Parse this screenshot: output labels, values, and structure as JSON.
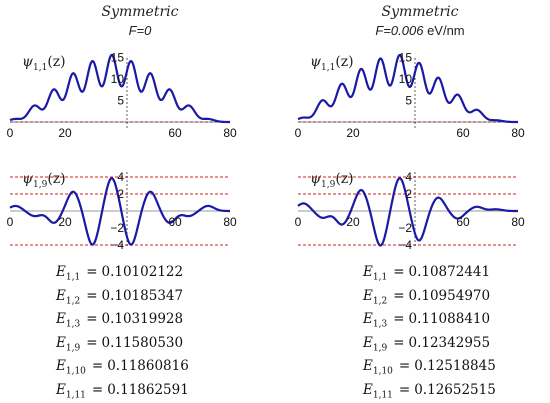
{
  "panels": [
    {
      "title": "Symmetric",
      "field_prefix": "F=",
      "field_value": "0",
      "field_unit": "",
      "psi11_label": "ψ",
      "psi11_sub": "1,1",
      "psi11_arg": "(z)",
      "psi19_label": "ψ",
      "psi19_sub": "1,9",
      "psi19_arg": "(z)",
      "energies": [
        {
          "sub": "1,1",
          "value": "0.10102122"
        },
        {
          "sub": "1,2",
          "value": "0.10185347"
        },
        {
          "sub": "1,3",
          "value": "0.10319928"
        },
        {
          "sub": "1,9",
          "value": "0.11580530"
        },
        {
          "sub": "1,10",
          "value": "0.11860816"
        },
        {
          "sub": "1,11",
          "value": "0.11862591"
        }
      ]
    },
    {
      "title": "Symmetric",
      "field_prefix": "F=",
      "field_value": "0.006",
      "field_unit": " eV/nm",
      "psi11_label": "ψ",
      "psi11_sub": "1,1",
      "psi11_arg": "(z)",
      "psi19_label": "ψ",
      "psi19_sub": "1,9",
      "psi19_arg": "(z)",
      "energies": [
        {
          "sub": "1,1",
          "value": "0.10872441"
        },
        {
          "sub": "1,2",
          "value": "0.10954970"
        },
        {
          "sub": "1,3",
          "value": "0.11088410"
        },
        {
          "sub": "1,9",
          "value": "0.12342955"
        },
        {
          "sub": "1,10",
          "value": "0.12518845"
        },
        {
          "sub": "1,11",
          "value": "0.12652515"
        }
      ]
    }
  ],
  "energy_symbol": "E",
  "energy_equals": "=",
  "colors": {
    "curve": "#1a1aa6",
    "reference": "#cc2222",
    "axis": "#333333"
  },
  "chart_data": [
    {
      "type": "line",
      "panel": "left",
      "title": "Symmetric F=0",
      "ylabel": "ψ1,1(z)",
      "xlim": [
        0,
        80
      ],
      "ylim": [
        0,
        16
      ],
      "xticks": [
        0,
        20,
        60,
        80
      ],
      "yticks": [
        5,
        10,
        15
      ],
      "reference_lines": [
        0
      ],
      "peaks": [
        {
          "x": 2,
          "y": 0.7
        },
        {
          "x": 9,
          "y": 3.8
        },
        {
          "x": 16,
          "y": 7.5
        },
        {
          "x": 23,
          "y": 11.2
        },
        {
          "x": 30,
          "y": 14
        },
        {
          "x": 37,
          "y": 15.4
        },
        {
          "x": 44,
          "y": 14
        },
        {
          "x": 51,
          "y": 11.2
        },
        {
          "x": 58,
          "y": 7.5
        },
        {
          "x": 65,
          "y": 3.8
        },
        {
          "x": 72,
          "y": 0.7
        }
      ]
    },
    {
      "type": "line",
      "panel": "left",
      "ylabel": "ψ1,9(z)",
      "xlim": [
        0,
        80
      ],
      "ylim": [
        -4.5,
        4.5
      ],
      "xticks": [
        0,
        20,
        60,
        80
      ],
      "yticks": [
        -4,
        -2,
        2,
        4
      ],
      "reference_lines": [
        -4,
        2,
        4
      ],
      "peaks": [
        {
          "x": 2,
          "y": 0.6
        },
        {
          "x": 9,
          "y": -0.6
        },
        {
          "x": 16,
          "y": -1.4
        },
        {
          "x": 23,
          "y": 2.3
        },
        {
          "x": 30,
          "y": -4.0
        },
        {
          "x": 37,
          "y": 3.9
        },
        {
          "x": 44,
          "y": -4.0
        },
        {
          "x": 51,
          "y": 2.3
        },
        {
          "x": 58,
          "y": -1.4
        },
        {
          "x": 65,
          "y": -0.6
        },
        {
          "x": 72,
          "y": 0.6
        }
      ]
    },
    {
      "type": "line",
      "panel": "right",
      "title": "Symmetric F=0.006 eV/nm",
      "ylabel": "ψ1,1(z)",
      "xlim": [
        0,
        80
      ],
      "ylim": [
        0,
        16
      ],
      "xticks": [
        0,
        20,
        60,
        80
      ],
      "yticks": [
        5,
        10,
        15
      ],
      "reference_lines": [
        0
      ],
      "peaks": [
        {
          "x": 2,
          "y": 1.0
        },
        {
          "x": 9,
          "y": 5.0
        },
        {
          "x": 16,
          "y": 8.8
        },
        {
          "x": 23,
          "y": 12.2
        },
        {
          "x": 30,
          "y": 14.6
        },
        {
          "x": 37,
          "y": 15.4
        },
        {
          "x": 44,
          "y": 13.6
        },
        {
          "x": 51,
          "y": 10.2
        },
        {
          "x": 58,
          "y": 6.3
        },
        {
          "x": 65,
          "y": 2.8
        },
        {
          "x": 72,
          "y": 0.4
        }
      ]
    },
    {
      "type": "line",
      "panel": "right",
      "ylabel": "ψ1,9(z)",
      "xlim": [
        0,
        80
      ],
      "ylim": [
        -4.5,
        4.5
      ],
      "xticks": [
        0,
        20,
        60,
        80
      ],
      "yticks": [
        -4,
        -2,
        2,
        4
      ],
      "reference_lines": [
        -4,
        2,
        4
      ],
      "peaks": [
        {
          "x": 2,
          "y": 0.9
        },
        {
          "x": 9,
          "y": -0.8
        },
        {
          "x": 16,
          "y": -1.6
        },
        {
          "x": 23,
          "y": 2.5
        },
        {
          "x": 30,
          "y": -4.1
        },
        {
          "x": 37,
          "y": 3.9
        },
        {
          "x": 44,
          "y": -3.5
        },
        {
          "x": 51,
          "y": 1.6
        },
        {
          "x": 58,
          "y": -0.9
        },
        {
          "x": 65,
          "y": 0.5
        },
        {
          "x": 72,
          "y": 0.2
        }
      ]
    }
  ]
}
